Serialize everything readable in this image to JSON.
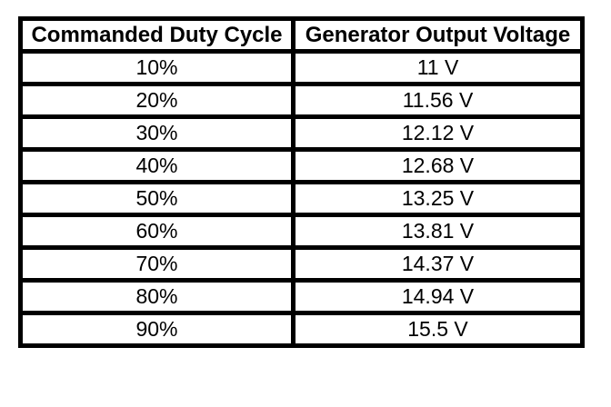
{
  "table": {
    "headers": [
      "Commanded Duty Cycle",
      "Generator Output Voltage"
    ],
    "rows": [
      {
        "duty_cycle": "10%",
        "voltage": "11 V"
      },
      {
        "duty_cycle": "20%",
        "voltage": "11.56 V"
      },
      {
        "duty_cycle": "30%",
        "voltage": "12.12 V"
      },
      {
        "duty_cycle": "40%",
        "voltage": "12.68 V"
      },
      {
        "duty_cycle": "50%",
        "voltage": "13.25 V"
      },
      {
        "duty_cycle": "60%",
        "voltage": "13.81 V"
      },
      {
        "duty_cycle": "70%",
        "voltage": "14.37 V"
      },
      {
        "duty_cycle": "80%",
        "voltage": "14.94 V"
      },
      {
        "duty_cycle": "90%",
        "voltage": "15.5 V"
      }
    ]
  },
  "colors": {
    "border": "#000000",
    "background": "#ffffff",
    "text": "#000000"
  },
  "chart_data": {
    "type": "table",
    "title": "",
    "columns": [
      "Commanded Duty Cycle",
      "Generator Output Voltage"
    ],
    "categories": [
      "10%",
      "20%",
      "30%",
      "40%",
      "50%",
      "60%",
      "70%",
      "80%",
      "90%"
    ],
    "values": [
      11,
      11.56,
      12.12,
      12.68,
      13.25,
      13.81,
      14.37,
      14.94,
      15.5
    ],
    "value_labels": [
      "11 V",
      "11.56 V",
      "12.12 V",
      "12.68 V",
      "13.25 V",
      "13.81 V",
      "14.37 V",
      "14.94 V",
      "15.5 V"
    ],
    "value_unit": "V",
    "grid": true,
    "legend_position": "none"
  }
}
